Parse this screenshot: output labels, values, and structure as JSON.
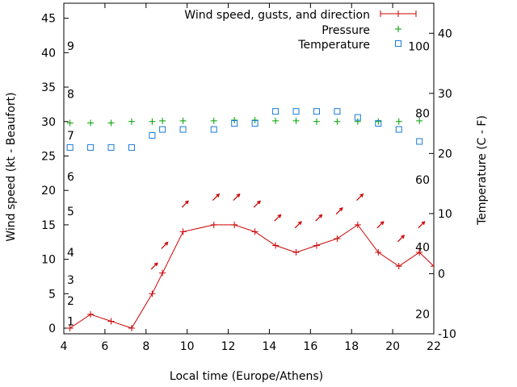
{
  "chart_data": {
    "type": "line",
    "xlabel": "Local time (Europe/Athens)",
    "ylabel_left": "Wind speed (kt - Beaufort)",
    "ylabel_right": "Temperature (C - F)",
    "xlim": [
      4,
      22
    ],
    "ylim_left": [
      0,
      48
    ],
    "ylim_right": [
      -10,
      45
    ],
    "x_ticks": [
      4,
      6,
      8,
      10,
      12,
      14,
      16,
      18,
      20,
      22
    ],
    "y_left_ticks": [
      0,
      5,
      10,
      15,
      20,
      25,
      30,
      35,
      40,
      45
    ],
    "y_right_ticks": [
      -10,
      0,
      10,
      20,
      30,
      40
    ],
    "beaufort_labels": [
      {
        "label": "1",
        "kt": 1
      },
      {
        "label": "2",
        "kt": 4
      },
      {
        "label": "3",
        "kt": 7
      },
      {
        "label": "4",
        "kt": 11
      },
      {
        "label": "5",
        "kt": 17
      },
      {
        "label": "6",
        "kt": 22
      },
      {
        "label": "7",
        "kt": 28
      },
      {
        "label": "8",
        "kt": 34
      },
      {
        "label": "9",
        "kt": 41
      }
    ],
    "fahrenheit_labels": [
      {
        "label": "20",
        "celsius": -6.7
      },
      {
        "label": "40",
        "celsius": 4.4
      },
      {
        "label": "60",
        "celsius": 15.6
      },
      {
        "label": "80",
        "celsius": 26.7
      },
      {
        "label": "100",
        "celsius": 37.8
      }
    ],
    "legend_position": "top-right",
    "series": [
      {
        "name": "Wind speed, gusts, and direction",
        "color": "#cc0000",
        "style": "line+plus",
        "axis": "left",
        "x": [
          4.3,
          5.3,
          6.3,
          7.3,
          8.3,
          8.8,
          9.8,
          11.3,
          12.3,
          13.3,
          14.3,
          15.3,
          16.3,
          17.3,
          18.3,
          19.3,
          20.3,
          21.3,
          22
        ],
        "y": [
          0,
          2,
          1,
          0,
          5,
          8,
          14,
          15,
          15,
          14,
          12,
          11,
          12,
          13,
          15,
          11,
          9,
          11,
          9
        ]
      },
      {
        "name": "Pressure",
        "color": "#00a000",
        "style": "plus",
        "axis": "left",
        "x": [
          4.3,
          5.3,
          6.3,
          7.3,
          8.3,
          8.8,
          9.8,
          11.3,
          12.3,
          13.3,
          14.3,
          15.3,
          16.3,
          17.3,
          18.3,
          19.3,
          20.3,
          21.3
        ],
        "y": [
          29.8,
          29.8,
          29.8,
          30.0,
          30.0,
          30.1,
          30.1,
          30.1,
          30.2,
          30.2,
          30.1,
          30.1,
          30.0,
          30.0,
          30.0,
          30.0,
          30.0,
          30.1
        ]
      },
      {
        "name": "Temperature",
        "color": "#1a7ad6",
        "style": "square",
        "axis": "right",
        "x": [
          4.3,
          5.3,
          6.3,
          7.3,
          8.3,
          8.8,
          9.8,
          11.3,
          12.3,
          13.3,
          14.3,
          15.3,
          16.3,
          17.3,
          18.3,
          19.3,
          20.3,
          21.3
        ],
        "y": [
          21,
          21,
          21,
          21,
          23,
          24,
          24,
          24,
          25,
          25,
          27,
          27,
          27,
          27,
          26,
          25,
          24,
          22
        ]
      }
    ],
    "wind_direction_arrows": {
      "color": "#cc0000",
      "x": [
        8.4,
        8.9,
        9.9,
        11.4,
        12.4,
        13.4,
        14.4,
        15.4,
        16.4,
        17.4,
        18.4,
        19.4,
        20.4,
        21.4
      ],
      "y": [
        9,
        12,
        18,
        19,
        19,
        18,
        16,
        15,
        16,
        17,
        19,
        15,
        13,
        15
      ],
      "direction_deg": [
        225,
        225,
        225,
        225,
        225,
        225,
        225,
        225,
        225,
        225,
        225,
        225,
        225,
        225
      ]
    }
  }
}
